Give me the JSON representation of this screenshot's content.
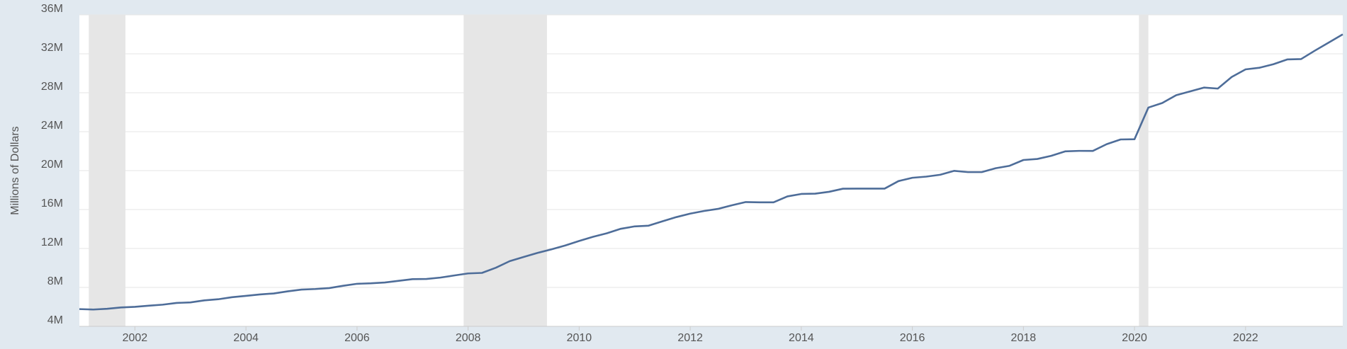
{
  "chart_data": {
    "type": "line",
    "y_axis_label": "Millions of Dollars",
    "x": [
      2001,
      2001.25,
      2001.5,
      2001.75,
      2002,
      2002.25,
      2002.5,
      2002.75,
      2003,
      2003.25,
      2003.5,
      2003.75,
      2004,
      2004.25,
      2004.5,
      2004.75,
      2005,
      2005.25,
      2005.5,
      2005.75,
      2006,
      2006.25,
      2006.5,
      2006.75,
      2007,
      2007.25,
      2007.5,
      2007.75,
      2008,
      2008.25,
      2008.5,
      2008.75,
      2009,
      2009.25,
      2009.5,
      2009.75,
      2010,
      2010.25,
      2010.5,
      2010.75,
      2011,
      2011.25,
      2011.5,
      2011.75,
      2012,
      2012.25,
      2012.5,
      2012.75,
      2013,
      2013.25,
      2013.5,
      2013.75,
      2014,
      2014.25,
      2014.5,
      2014.75,
      2015,
      2015.25,
      2015.5,
      2015.75,
      2016,
      2016.25,
      2016.5,
      2016.75,
      2017,
      2017.25,
      2017.5,
      2017.75,
      2018,
      2018.25,
      2018.5,
      2018.75,
      2019,
      2019.25,
      2019.5,
      2019.75,
      2020,
      2020.25,
      2020.5,
      2020.75,
      2021,
      2021.25,
      2021.5,
      2021.75,
      2022,
      2022.25,
      2022.5,
      2022.75,
      2023,
      2023.25,
      2023.5,
      2023.75
    ],
    "series": [
      {
        "color": "#4e6d99",
        "values": [
          5773000,
          5727000,
          5807000,
          5943000,
          6006000,
          6126000,
          6228000,
          6405000,
          6460000,
          6670000,
          6783000,
          6998000,
          7132000,
          7274000,
          7379000,
          7596000,
          7776000,
          7836000,
          7933000,
          8170000,
          8371000,
          8420000,
          8507000,
          8680000,
          8849000,
          8868000,
          9008000,
          9229000,
          9437000,
          9492000,
          10024000,
          10700000,
          11127000,
          11545000,
          11910000,
          12311000,
          12773000,
          13202000,
          13561000,
          14025000,
          14271000,
          14343000,
          14790000,
          15223000,
          15582000,
          15856000,
          16066000,
          16433000,
          16771000,
          16738000,
          16738000,
          17352000,
          17602000,
          17633000,
          17824000,
          18141000,
          18152000,
          18152000,
          18151000,
          18922000,
          19264000,
          19381000,
          19573000,
          19977000,
          19846000,
          19845000,
          20245000,
          20493000,
          21090000,
          21195000,
          21516000,
          21974000,
          22028000,
          22023000,
          22719000,
          23201000,
          23224000,
          26477000,
          26945000,
          27748000,
          28133000,
          28529000,
          28428000,
          29617000,
          30401000,
          30568000,
          30929000,
          31420000,
          31458000,
          32332000,
          33167000,
          34001000
        ]
      }
    ],
    "recessions": [
      [
        2001.17,
        2001.83
      ],
      [
        2007.92,
        2009.42
      ],
      [
        2020.08,
        2020.25
      ]
    ],
    "recession_color": "#e6e6e6",
    "xlim": [
      2001,
      2023.75
    ],
    "xticks": [
      2002,
      2004,
      2006,
      2008,
      2010,
      2012,
      2014,
      2016,
      2018,
      2020,
      2022
    ],
    "ylim": [
      4000000,
      36000000
    ],
    "yticks": [
      {
        "value": 4000000,
        "label": "4M"
      },
      {
        "value": 8000000,
        "label": "8M"
      },
      {
        "value": 12000000,
        "label": "12M"
      },
      {
        "value": 16000000,
        "label": "16M"
      },
      {
        "value": 20000000,
        "label": "20M"
      },
      {
        "value": 24000000,
        "label": "24M"
      },
      {
        "value": 28000000,
        "label": "28M"
      },
      {
        "value": 32000000,
        "label": "32M"
      },
      {
        "value": 36000000,
        "label": "36M"
      }
    ],
    "grid": true
  }
}
